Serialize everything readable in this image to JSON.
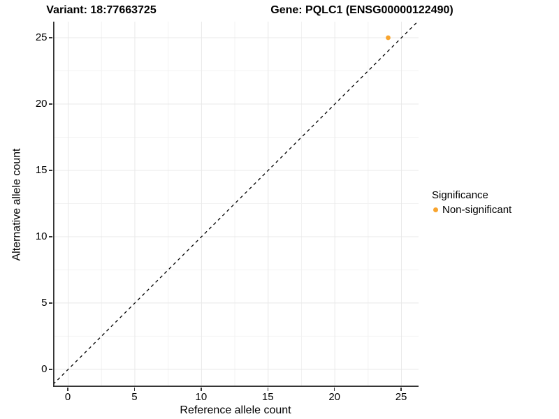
{
  "chart_data": {
    "type": "scatter",
    "title_left": "Variant: 18:77663725",
    "title_right": "Gene: PQLC1 (ENSG00000122490)",
    "xlabel": "Reference allele count",
    "ylabel": "Alternative allele count",
    "xlim": [
      -1.13,
      26.28
    ],
    "ylim": [
      -1.32,
      26.21
    ],
    "xticks": [
      0,
      5,
      10,
      15,
      20,
      25
    ],
    "yticks": [
      0,
      5,
      10,
      15,
      20,
      25
    ],
    "grid": "major-and-minor",
    "identity_line": {
      "slope": 1,
      "intercept": 0,
      "style": "dashed",
      "color": "#000000"
    },
    "points": [
      {
        "x": 24,
        "y": 25,
        "series": "Non-significant"
      }
    ],
    "legend": {
      "position": "right",
      "title": "Significance",
      "items": [
        {
          "label": "Non-significant",
          "color": "#F8A42E"
        }
      ]
    }
  },
  "colors": {
    "background": "#ffffff",
    "axis_line": "#333333",
    "grid_major": "#e8e8e8",
    "grid_minor": "#f2f2f2",
    "point_orange": "#F8A42E",
    "text": "#000000"
  }
}
